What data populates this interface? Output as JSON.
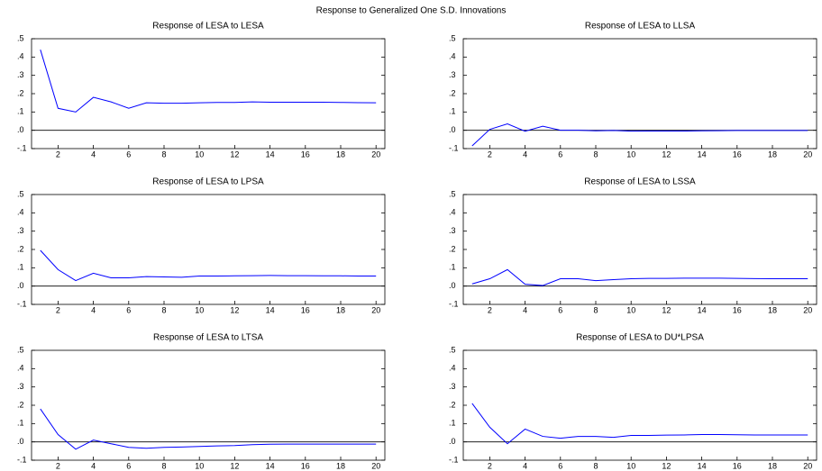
{
  "title": "Response to Generalized One S.D. Innovations",
  "chart_data": [
    {
      "type": "line",
      "title": "Response of LESA to LESA",
      "color": "#0000ff",
      "zero_line": true,
      "x": [
        1,
        2,
        3,
        4,
        5,
        6,
        7,
        8,
        9,
        10,
        11,
        12,
        13,
        14,
        15,
        16,
        17,
        18,
        19,
        20
      ],
      "values": [
        0.44,
        0.12,
        0.1,
        0.18,
        0.155,
        0.12,
        0.15,
        0.148,
        0.148,
        0.15,
        0.152,
        0.152,
        0.155,
        0.153,
        0.153,
        0.153,
        0.153,
        0.152,
        0.151,
        0.15
      ],
      "xlim": [
        0.5,
        20.5
      ],
      "xticks": [
        2,
        4,
        6,
        8,
        10,
        12,
        14,
        16,
        18,
        20
      ],
      "ylim": [
        -0.1,
        0.5
      ],
      "yticks": [
        {
          "value": -0.1,
          "label": "-.1"
        },
        {
          "value": 0,
          "label": ".0"
        },
        {
          "value": 0.1,
          "label": ".1"
        },
        {
          "value": 0.2,
          "label": ".2"
        },
        {
          "value": 0.3,
          "label": ".3"
        },
        {
          "value": 0.4,
          "label": ".4"
        },
        {
          "value": 0.5,
          "label": ".5"
        }
      ]
    },
    {
      "type": "line",
      "title": "Response of LESA to LLSA",
      "color": "#0000ff",
      "zero_line": true,
      "x": [
        1,
        2,
        3,
        4,
        5,
        6,
        7,
        8,
        9,
        10,
        11,
        12,
        13,
        14,
        15,
        16,
        17,
        18,
        19,
        20
      ],
      "values": [
        -0.085,
        0.005,
        0.035,
        -0.005,
        0.022,
        0.0,
        0.0,
        -0.003,
        -0.001,
        -0.005,
        -0.004,
        -0.004,
        -0.004,
        -0.003,
        -0.002,
        -0.001,
        -0.001,
        -0.001,
        -0.001,
        -0.001
      ],
      "xlim": [
        0.5,
        20.5
      ],
      "xticks": [
        2,
        4,
        6,
        8,
        10,
        12,
        14,
        16,
        18,
        20
      ],
      "ylim": [
        -0.1,
        0.5
      ],
      "yticks": [
        {
          "value": -0.1,
          "label": "-.1"
        },
        {
          "value": 0,
          "label": ".0"
        },
        {
          "value": 0.1,
          "label": ".1"
        },
        {
          "value": 0.2,
          "label": ".2"
        },
        {
          "value": 0.3,
          "label": ".3"
        },
        {
          "value": 0.4,
          "label": ".4"
        },
        {
          "value": 0.5,
          "label": ".5"
        }
      ]
    },
    {
      "type": "line",
      "title": "Response of LESA to LPSA",
      "color": "#0000ff",
      "zero_line": true,
      "x": [
        1,
        2,
        3,
        4,
        5,
        6,
        7,
        8,
        9,
        10,
        11,
        12,
        13,
        14,
        15,
        16,
        17,
        18,
        19,
        20
      ],
      "values": [
        0.195,
        0.09,
        0.03,
        0.07,
        0.045,
        0.045,
        0.052,
        0.05,
        0.048,
        0.055,
        0.055,
        0.056,
        0.057,
        0.058,
        0.057,
        0.057,
        0.056,
        0.056,
        0.055,
        0.055
      ],
      "xlim": [
        0.5,
        20.5
      ],
      "xticks": [
        2,
        4,
        6,
        8,
        10,
        12,
        14,
        16,
        18,
        20
      ],
      "ylim": [
        -0.1,
        0.5
      ],
      "yticks": [
        {
          "value": -0.1,
          "label": "-.1"
        },
        {
          "value": 0,
          "label": ".0"
        },
        {
          "value": 0.1,
          "label": ".1"
        },
        {
          "value": 0.2,
          "label": ".2"
        },
        {
          "value": 0.3,
          "label": ".3"
        },
        {
          "value": 0.4,
          "label": ".4"
        },
        {
          "value": 0.5,
          "label": ".5"
        }
      ]
    },
    {
      "type": "line",
      "title": "Response of LESA to LSSA",
      "color": "#0000ff",
      "zero_line": true,
      "x": [
        1,
        2,
        3,
        4,
        5,
        6,
        7,
        8,
        9,
        10,
        11,
        12,
        13,
        14,
        15,
        16,
        17,
        18,
        19,
        20
      ],
      "values": [
        0.012,
        0.04,
        0.09,
        0.01,
        0.003,
        0.04,
        0.04,
        0.03,
        0.035,
        0.04,
        0.042,
        0.042,
        0.043,
        0.043,
        0.043,
        0.042,
        0.041,
        0.04,
        0.04,
        0.04
      ],
      "xlim": [
        0.5,
        20.5
      ],
      "xticks": [
        2,
        4,
        6,
        8,
        10,
        12,
        14,
        16,
        18,
        20
      ],
      "ylim": [
        -0.1,
        0.5
      ],
      "yticks": [
        {
          "value": -0.1,
          "label": "-.1"
        },
        {
          "value": 0,
          "label": ".0"
        },
        {
          "value": 0.1,
          "label": ".1"
        },
        {
          "value": 0.2,
          "label": ".2"
        },
        {
          "value": 0.3,
          "label": ".3"
        },
        {
          "value": 0.4,
          "label": ".4"
        },
        {
          "value": 0.5,
          "label": ".5"
        }
      ]
    },
    {
      "type": "line",
      "title": "Response of LESA to LTSA",
      "color": "#0000ff",
      "zero_line": true,
      "x": [
        1,
        2,
        3,
        4,
        5,
        6,
        7,
        8,
        9,
        10,
        11,
        12,
        13,
        14,
        15,
        16,
        17,
        18,
        19,
        20
      ],
      "values": [
        0.18,
        0.04,
        -0.04,
        0.01,
        -0.01,
        -0.03,
        -0.035,
        -0.03,
        -0.028,
        -0.025,
        -0.022,
        -0.02,
        -0.015,
        -0.013,
        -0.012,
        -0.012,
        -0.012,
        -0.012,
        -0.012,
        -0.012
      ],
      "xlim": [
        0.5,
        20.5
      ],
      "xticks": [
        2,
        4,
        6,
        8,
        10,
        12,
        14,
        16,
        18,
        20
      ],
      "ylim": [
        -0.1,
        0.5
      ],
      "yticks": [
        {
          "value": -0.1,
          "label": "-.1"
        },
        {
          "value": 0,
          "label": ".0"
        },
        {
          "value": 0.1,
          "label": ".1"
        },
        {
          "value": 0.2,
          "label": ".2"
        },
        {
          "value": 0.3,
          "label": ".3"
        },
        {
          "value": 0.4,
          "label": ".4"
        },
        {
          "value": 0.5,
          "label": ".5"
        }
      ]
    },
    {
      "type": "line",
      "title": "Response of LESA to DU*LPSA",
      "color": "#0000ff",
      "zero_line": true,
      "x": [
        1,
        2,
        3,
        4,
        5,
        6,
        7,
        8,
        9,
        10,
        11,
        12,
        13,
        14,
        15,
        16,
        17,
        18,
        19,
        20
      ],
      "values": [
        0.21,
        0.08,
        -0.01,
        0.07,
        0.03,
        0.02,
        0.03,
        0.03,
        0.025,
        0.035,
        0.035,
        0.037,
        0.038,
        0.04,
        0.04,
        0.039,
        0.038,
        0.038,
        0.038,
        0.038
      ],
      "xlim": [
        0.5,
        20.5
      ],
      "xticks": [
        2,
        4,
        6,
        8,
        10,
        12,
        14,
        16,
        18,
        20
      ],
      "ylim": [
        -0.1,
        0.5
      ],
      "yticks": [
        {
          "value": -0.1,
          "label": "-.1"
        },
        {
          "value": 0,
          "label": ".0"
        },
        {
          "value": 0.1,
          "label": ".1"
        },
        {
          "value": 0.2,
          "label": ".2"
        },
        {
          "value": 0.3,
          "label": ".3"
        },
        {
          "value": 0.4,
          "label": ".4"
        },
        {
          "value": 0.5,
          "label": ".5"
        }
      ]
    }
  ]
}
